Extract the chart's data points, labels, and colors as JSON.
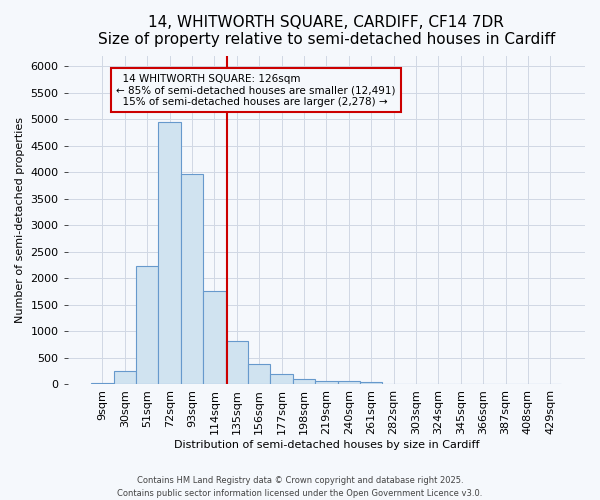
{
  "title": "14, WHITWORTH SQUARE, CARDIFF, CF14 7DR",
  "subtitle": "Size of property relative to semi-detached houses in Cardiff",
  "xlabel": "Distribution of semi-detached houses by size in Cardiff",
  "ylabel": "Number of semi-detached properties",
  "bar_labels": [
    "9sqm",
    "30sqm",
    "51sqm",
    "72sqm",
    "93sqm",
    "114sqm",
    "135sqm",
    "156sqm",
    "177sqm",
    "198sqm",
    "219sqm",
    "240sqm",
    "261sqm",
    "282sqm",
    "303sqm",
    "324sqm",
    "345sqm",
    "366sqm",
    "387sqm",
    "408sqm",
    "429sqm"
  ],
  "bar_values": [
    30,
    260,
    2240,
    4950,
    3960,
    1760,
    820,
    390,
    200,
    105,
    65,
    58,
    48,
    0,
    0,
    0,
    0,
    0,
    0,
    0,
    0
  ],
  "bar_color": "#d0e3f0",
  "bar_edge_color": "#6699cc",
  "vline_color": "#cc0000",
  "annotation_box_color": "#cc0000",
  "annotation_title": "14 WHITWORTH SQUARE: 126sqm",
  "smaller_pct": "85%",
  "smaller_count": "12,491",
  "larger_pct": "15%",
  "larger_count": "2,278",
  "ylim": [
    0,
    6200
  ],
  "yticks": [
    0,
    500,
    1000,
    1500,
    2000,
    2500,
    3000,
    3500,
    4000,
    4500,
    5000,
    5500,
    6000
  ],
  "footer1": "Contains HM Land Registry data © Crown copyright and database right 2025.",
  "footer2": "Contains public sector information licensed under the Open Government Licence v3.0.",
  "background_color": "#f5f8fc",
  "grid_color": "#d0d8e4",
  "title_fontsize": 11,
  "subtitle_fontsize": 9,
  "axis_label_fontsize": 8,
  "tick_fontsize": 8,
  "annotation_fontsize": 7.5
}
